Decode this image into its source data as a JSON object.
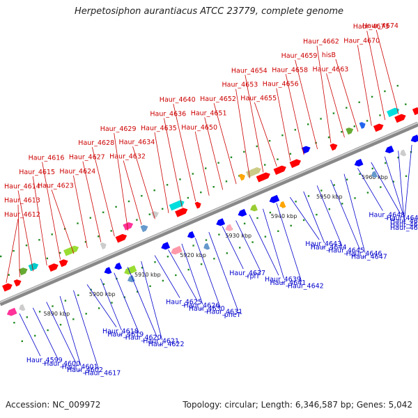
{
  "title": "Herpetosiphon aurantiacus ATCC 23779, complete genome",
  "footer": {
    "accession": "Accession: NC_009972",
    "summary": "Topology: circular; Length: 6,346,587 bp; Genes: 5,042"
  },
  "colors": {
    "top_labels": "#cc0000",
    "bottom_labels": "#0000cc",
    "axis": "#808080",
    "ticks": "#228b22"
  },
  "kbp_labels": [
    "5890 kbp",
    "5900 kbp",
    "5910 kbp",
    "5920 kbp",
    "5930 kbp",
    "5940 kbp",
    "5950 kbp",
    "5960 kbp"
  ],
  "top_gene_labels": [
    "Haur_4612",
    "Haur_4613",
    "Haur_4614",
    "Haur_4615",
    "Haur_4616",
    "Haur_4623",
    "Haur_4624",
    "Haur_4627",
    "Haur_4628",
    "Haur_4629",
    "Haur_4632",
    "Haur_4634",
    "Haur_4635",
    "Haur_4636",
    "Haur_4640",
    "Haur_4650",
    "Haur_4651",
    "Haur_4652",
    "Haur_4653",
    "Haur_4654",
    "Haur_4655",
    "Haur_4656",
    "Haur_4658",
    "Haur_4659",
    "Haur_4662",
    "Haur_4663",
    "hisB",
    "Haur_4670",
    "Haur_4673",
    "Haur_4674"
  ],
  "bottom_gene_labels": [
    "Haur_4599",
    "Haur_4600",
    "Haur_4601",
    "Haur_4602",
    "Haur_4617",
    "Haur_4618",
    "Haur_4619",
    "Haur_4620",
    "Haur_4621",
    "Haur_4622",
    "Haur_4625",
    "Haur_4626",
    "Haur_4630",
    "Haur_4631",
    "pheT",
    "Haur_4637",
    "rplT",
    "Haur_4639",
    "Haur_4641",
    "Haur_4642",
    "Haur_4643",
    "Haur_4644",
    "Haur_4645",
    "Haur_4646",
    "Haur_4647",
    "Haur_4648",
    "Haur_4649",
    "Haur_4660",
    "Haur_4661",
    "Haur_4665"
  ]
}
